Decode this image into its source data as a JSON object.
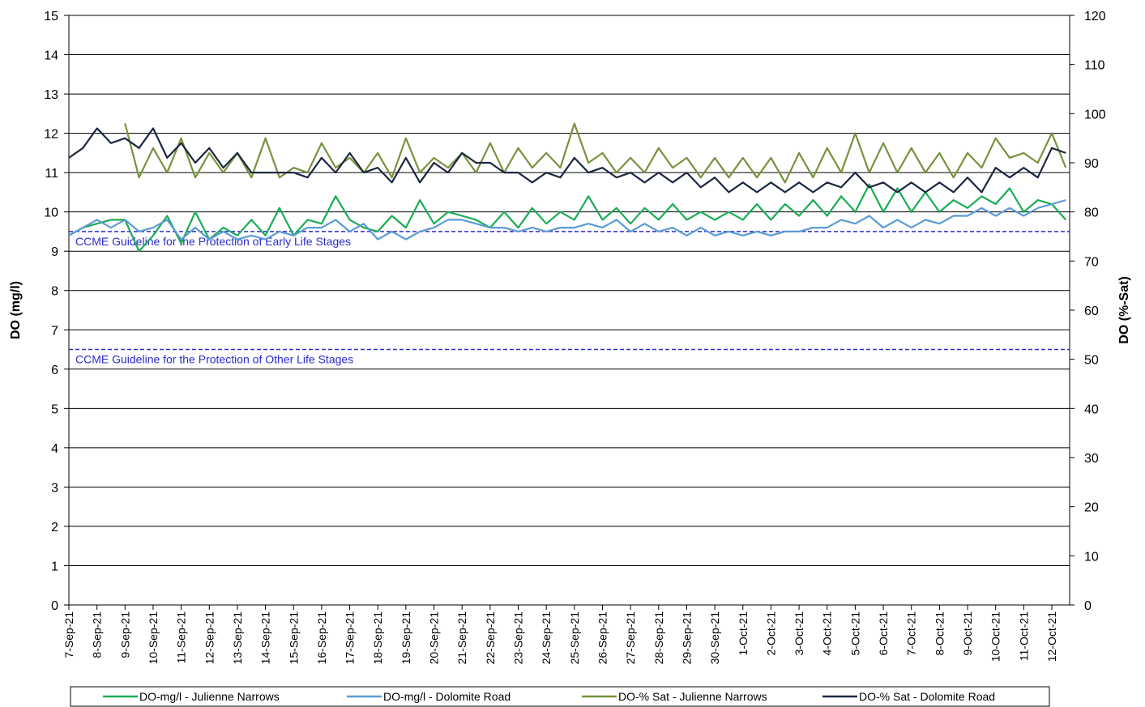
{
  "chart_data": {
    "type": "line",
    "y_label": "DO (mg/l)",
    "y2_label": "DO (%-Sat)",
    "ylim": [
      0,
      15
    ],
    "yticks": [
      0,
      1,
      2,
      3,
      4,
      5,
      6,
      7,
      8,
      9,
      10,
      11,
      12,
      13,
      14,
      15
    ],
    "y2lim": [
      0,
      120
    ],
    "y2ticks": [
      0,
      10,
      20,
      30,
      40,
      50,
      60,
      70,
      80,
      90,
      100,
      110,
      120
    ],
    "grid": true,
    "legend": "bottom",
    "categories": [
      "7-Sep-21",
      null,
      "8-Sep-21",
      null,
      "9-Sep-21",
      null,
      "10-Sep-21",
      null,
      "11-Sep-21",
      null,
      "12-Sep-21",
      null,
      "13-Sep-21",
      null,
      "14-Sep-21",
      null,
      "15-Sep-21",
      null,
      "16-Sep-21",
      null,
      "17-Sep-21",
      null,
      "18-Sep-21",
      null,
      "19-Sep-21",
      null,
      "20-Sep-21",
      null,
      "21-Sep-21",
      null,
      "22-Sep-21",
      null,
      "23-Sep-21",
      null,
      "24-Sep-21",
      null,
      "25-Sep-21",
      null,
      "26-Sep-21",
      null,
      "27-Sep-21",
      null,
      "28-Sep-21",
      null,
      "29-Sep-21",
      null,
      "30-Sep-21",
      null,
      "1-Oct-21",
      null,
      "2-Oct-21",
      null,
      "3-Oct-21",
      null,
      "4-Oct-21",
      null,
      "5-Oct-21",
      null,
      "6-Oct-21",
      null,
      "7-Oct-21",
      null,
      "8-Oct-21",
      null,
      "9-Oct-21",
      null,
      "10-Oct-21",
      null,
      "11-Oct-21",
      null,
      "12-Oct-21",
      null
    ],
    "series": [
      {
        "name": "DO-mg/l - Julienne Narrows",
        "color": "#1aad55",
        "values": [
          9.4,
          9.6,
          9.7,
          9.8,
          9.8,
          9.0,
          9.4,
          9.9,
          9.2,
          10.0,
          9.3,
          9.6,
          9.4,
          9.8,
          9.4,
          10.1,
          9.4,
          9.8,
          9.7,
          10.4,
          9.8,
          9.6,
          9.5,
          9.9,
          9.6,
          10.3,
          9.7,
          10.0,
          9.9,
          9.8,
          9.6,
          10.0,
          9.6,
          10.1,
          9.7,
          10.0,
          9.8,
          10.4,
          9.8,
          10.1,
          9.7,
          10.1,
          9.8,
          10.2,
          9.8,
          10.0,
          9.8,
          10.0,
          9.8,
          10.2,
          9.8,
          10.2,
          9.9,
          10.3,
          9.9,
          10.4,
          10.0,
          10.7,
          10.0,
          10.6,
          10.0,
          10.5,
          10.0,
          10.3,
          10.1,
          10.4,
          10.2,
          10.6,
          10.0,
          10.3,
          10.2,
          9.8
        ]
      },
      {
        "name": "DO-mg/l - Dolomite Road",
        "color": "#5b9bd5",
        "values": [
          9.4,
          9.6,
          9.8,
          9.6,
          9.8,
          9.5,
          9.6,
          9.8,
          9.3,
          9.6,
          9.3,
          9.5,
          9.3,
          9.4,
          9.3,
          9.5,
          9.4,
          9.6,
          9.6,
          9.8,
          9.5,
          9.7,
          9.3,
          9.5,
          9.3,
          9.5,
          9.6,
          9.8,
          9.8,
          9.7,
          9.6,
          9.6,
          9.5,
          9.6,
          9.5,
          9.6,
          9.6,
          9.7,
          9.6,
          9.8,
          9.5,
          9.7,
          9.5,
          9.6,
          9.4,
          9.6,
          9.4,
          9.5,
          9.4,
          9.5,
          9.4,
          9.5,
          9.5,
          9.6,
          9.6,
          9.8,
          9.7,
          9.9,
          9.6,
          9.8,
          9.6,
          9.8,
          9.7,
          9.9,
          9.9,
          10.1,
          9.9,
          10.1,
          9.9,
          10.1,
          10.2,
          10.3
        ]
      },
      {
        "name": "DO-% Sat - Julienne Narrows",
        "color": "#77933c",
        "axis": "y2",
        "values": [
          null,
          null,
          null,
          null,
          98,
          87,
          93,
          88,
          95,
          87,
          92,
          88,
          92,
          87,
          95,
          87,
          89,
          88,
          94,
          89,
          91,
          88,
          92,
          87,
          95,
          88,
          91,
          89,
          92,
          88,
          94,
          88,
          93,
          89,
          92,
          89,
          98,
          90,
          92,
          88,
          91,
          88,
          93,
          89,
          91,
          87,
          91,
          87,
          91,
          87,
          91,
          86,
          92,
          87,
          93,
          88,
          96,
          88,
          94,
          88,
          93,
          88,
          92,
          87,
          92,
          89,
          95,
          91,
          92,
          90,
          96,
          89
        ]
      },
      {
        "name": "DO-% Sat - Dolomite Road",
        "color": "#1c2841",
        "axis": "y2",
        "values": [
          91,
          93,
          97,
          94,
          95,
          93,
          97,
          91,
          94,
          90,
          93,
          89,
          92,
          88,
          88,
          88,
          88,
          87,
          91,
          88,
          92,
          88,
          89,
          86,
          91,
          86,
          90,
          88,
          92,
          90,
          90,
          88,
          88,
          86,
          88,
          87,
          91,
          88,
          89,
          87,
          88,
          86,
          88,
          86,
          88,
          85,
          87,
          84,
          86,
          84,
          86,
          84,
          86,
          84,
          86,
          85,
          88,
          85,
          86,
          84,
          86,
          84,
          86,
          84,
          87,
          84,
          89,
          87,
          89,
          87,
          93,
          92
        ]
      }
    ],
    "guidelines": [
      {
        "value": 9.5,
        "label": "CCME Guideline for the Protection of Early Life Stages",
        "color": "#2b2bd0"
      },
      {
        "value": 6.5,
        "label": "CCME Guideline for the Protection of Other Life Stages",
        "color": "#2b2bd0"
      }
    ]
  }
}
